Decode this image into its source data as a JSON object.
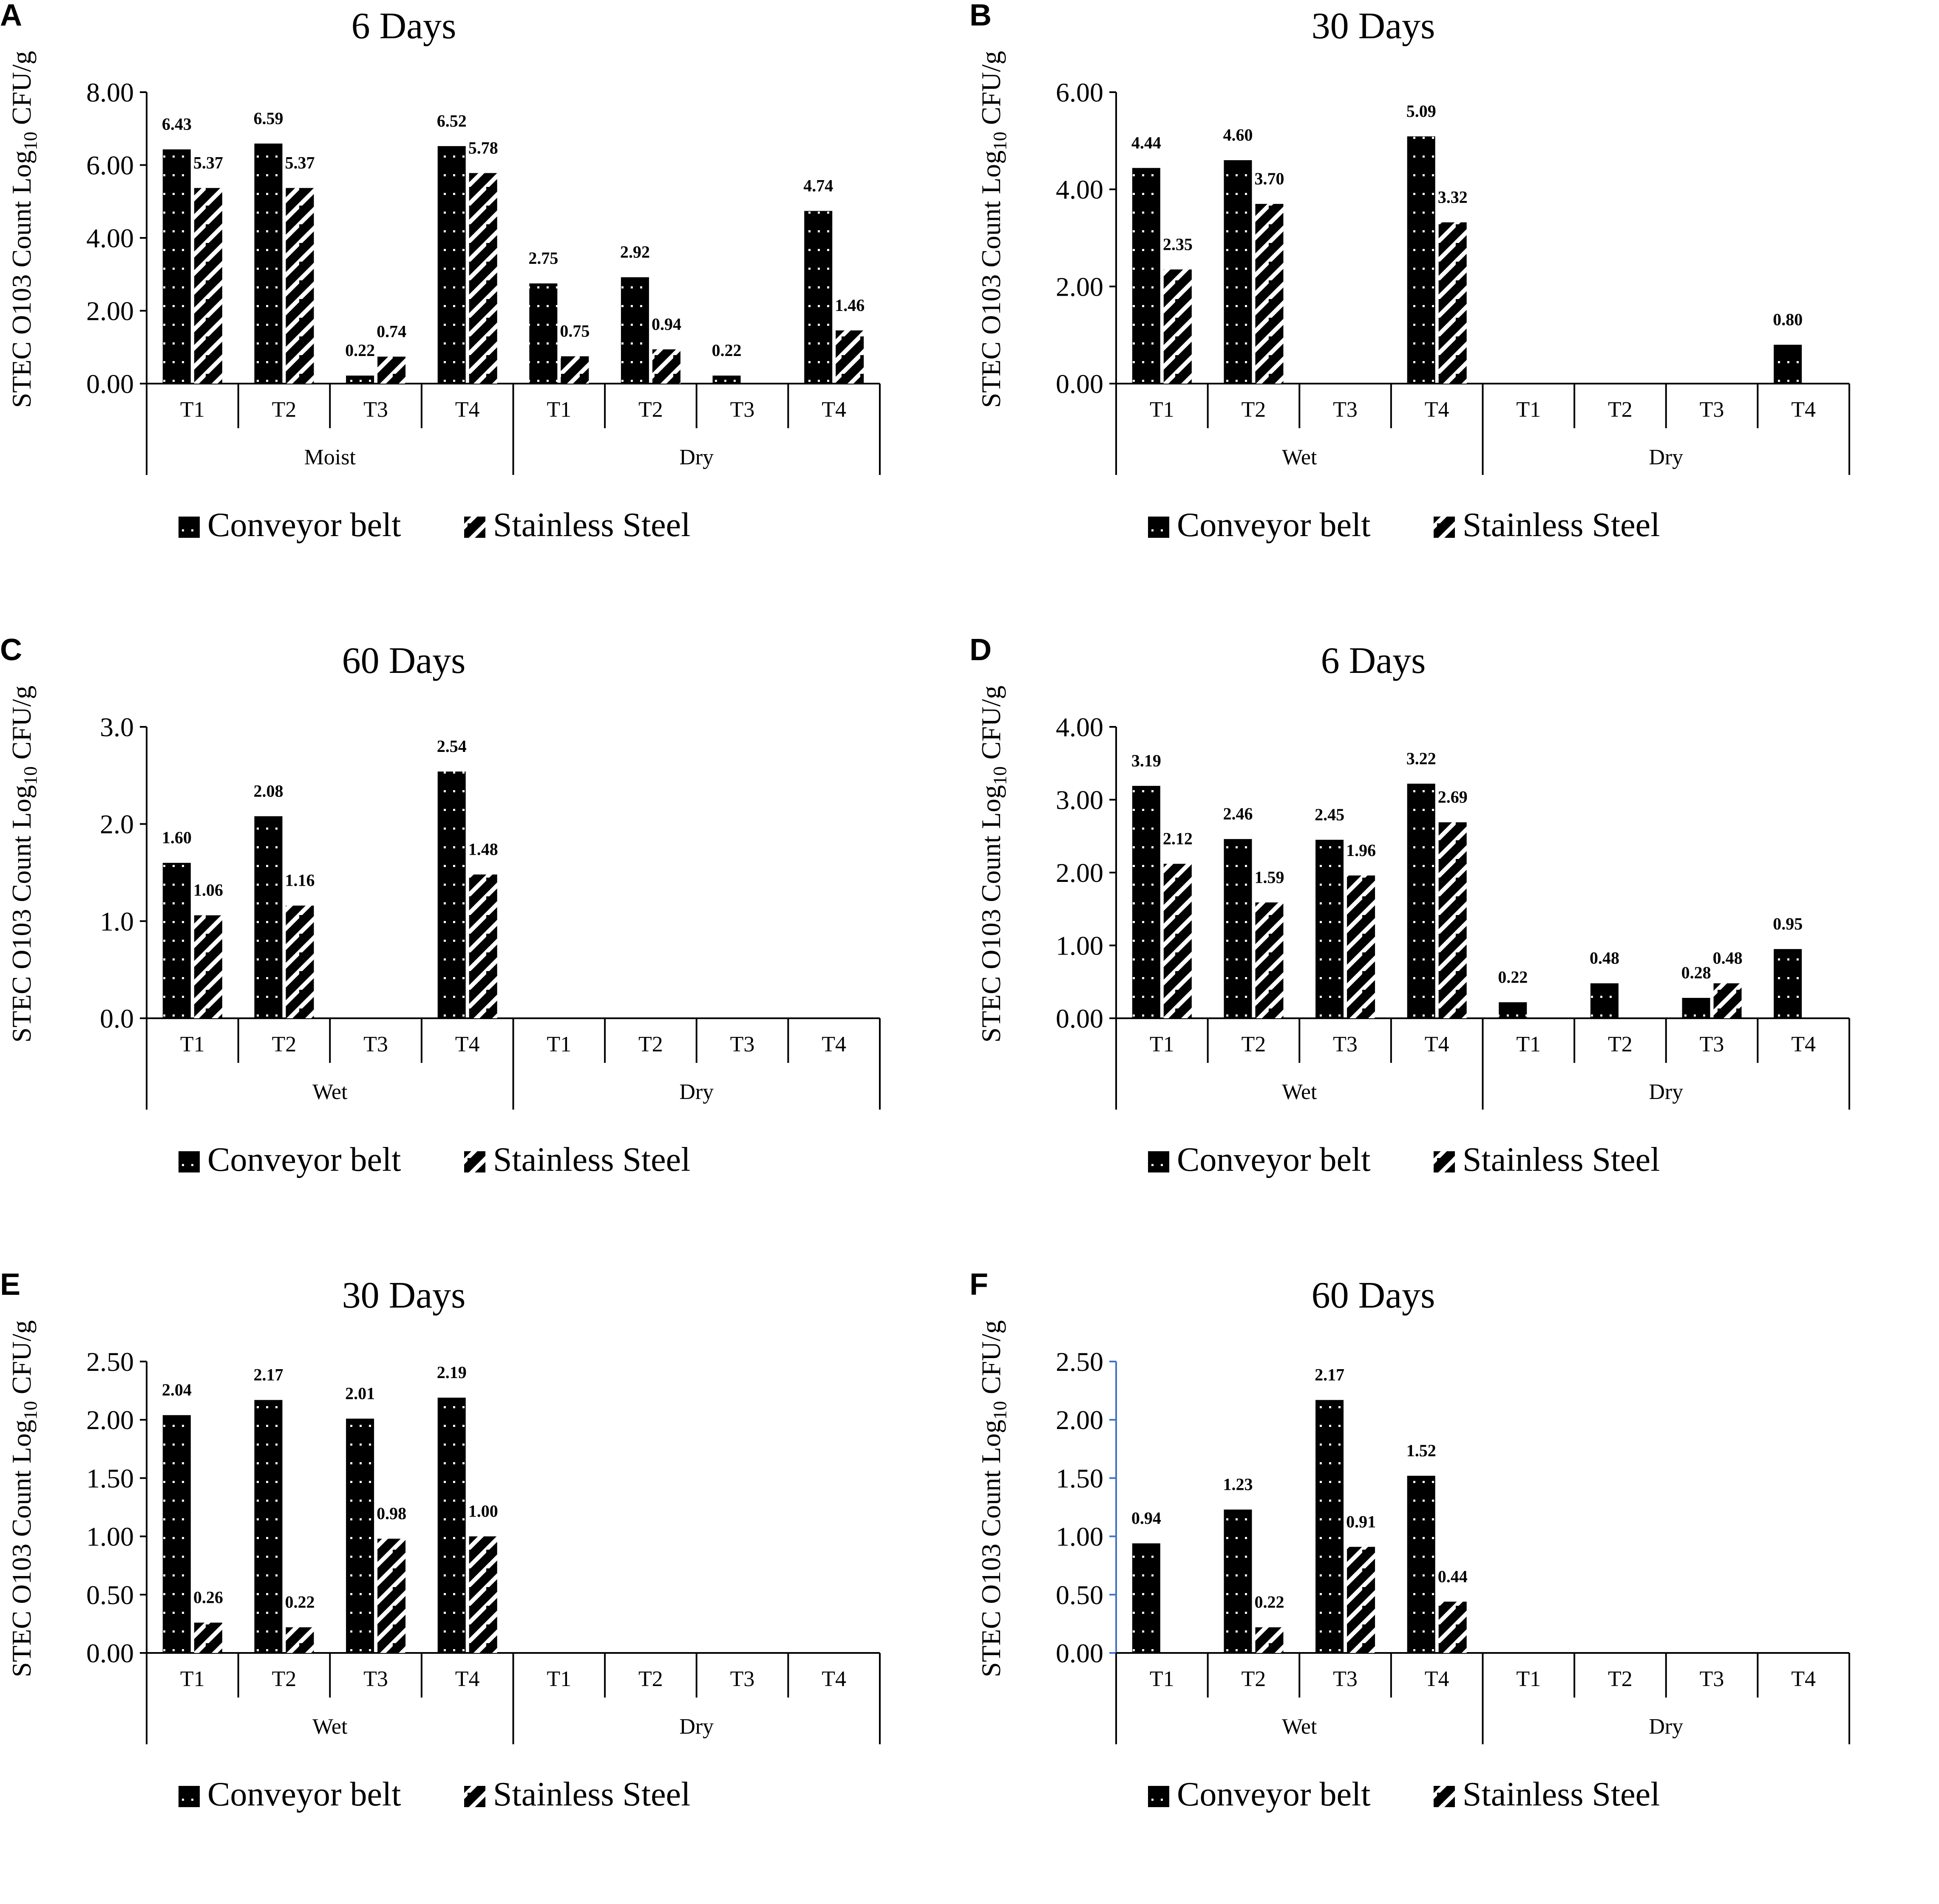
{
  "chart_data": [
    {
      "type": "bar",
      "panel_label": "A",
      "title": "6 Days",
      "ylabel": "STEC O103 Count Log10 CFU/g",
      "ylabel_main": "STEC O103 Count Log",
      "ylabel_sub": "10",
      "ylabel_unit": " CFU/g",
      "ylim": [
        0,
        8
      ],
      "yticks": [
        "0.00",
        "2.00",
        "4.00",
        "6.00",
        "8.00"
      ],
      "yaxis_color": "#000000",
      "categories": [
        "T1",
        "T2",
        "T3",
        "T4",
        "T1",
        "T2",
        "T3",
        "T4"
      ],
      "groups": [
        "Moist",
        "Dry"
      ],
      "series": [
        {
          "name": "Conveyor belt",
          "values": [
            6.43,
            6.59,
            0.22,
            6.52,
            2.75,
            2.92,
            0.22,
            4.74
          ],
          "labels": [
            "6.43",
            "6.59",
            "0.22",
            "6.52",
            "2.75",
            "2.92",
            "0.22",
            "4.74"
          ]
        },
        {
          "name": "Stainless Steel",
          "values": [
            5.37,
            5.37,
            0.74,
            5.78,
            0.75,
            0.94,
            null,
            1.46
          ],
          "labels": [
            "5.37",
            "5.37",
            "0.74",
            "5.78",
            "0.75",
            "0.94",
            "",
            "1.46"
          ]
        }
      ],
      "legend": [
        "Conveyor belt",
        "Stainless Steel"
      ]
    },
    {
      "type": "bar",
      "panel_label": "B",
      "title": "30 Days",
      "ylabel": "STEC O103 Count Log10 CFU/g",
      "ylabel_main": "STEC O103 Count Log",
      "ylabel_sub": "10",
      "ylabel_unit": " CFU/g",
      "ylim": [
        0,
        6
      ],
      "yticks": [
        "0.00",
        "2.00",
        "4.00",
        "6.00"
      ],
      "yaxis_color": "#000000",
      "categories": [
        "T1",
        "T2",
        "T3",
        "T4",
        "T1",
        "T2",
        "T3",
        "T4"
      ],
      "groups": [
        "Wet",
        "Dry"
      ],
      "series": [
        {
          "name": "Conveyor belt",
          "values": [
            4.44,
            4.6,
            null,
            5.09,
            null,
            null,
            null,
            0.8
          ],
          "labels": [
            "4.44",
            "4.60",
            "",
            "5.09",
            "",
            "",
            "",
            "0.80"
          ]
        },
        {
          "name": "Stainless Steel",
          "values": [
            2.35,
            3.7,
            null,
            3.32,
            null,
            null,
            null,
            null
          ],
          "labels": [
            "2.35",
            "3.70",
            "",
            "3.32",
            "",
            "",
            "",
            ""
          ]
        }
      ],
      "legend": [
        "Conveyor belt",
        "Stainless Steel"
      ]
    },
    {
      "type": "bar",
      "panel_label": "C",
      "title": "60 Days",
      "ylabel": "STEC O103 Count Log10 CFU/g",
      "ylabel_main": "STEC O103 Count Log",
      "ylabel_sub": "10",
      "ylabel_unit": " CFU/g",
      "ylim": [
        0,
        3
      ],
      "yticks": [
        "0.0",
        "1.0",
        "2.0",
        "3.0"
      ],
      "yaxis_color": "#000000",
      "categories": [
        "T1",
        "T2",
        "T3",
        "T4",
        "T1",
        "T2",
        "T3",
        "T4"
      ],
      "groups": [
        "Wet",
        "Dry"
      ],
      "series": [
        {
          "name": "Conveyor belt",
          "values": [
            1.6,
            2.08,
            null,
            2.54,
            null,
            null,
            null,
            null
          ],
          "labels": [
            "1.60",
            "2.08",
            "",
            "2.54",
            "",
            "",
            "",
            ""
          ]
        },
        {
          "name": "Stainless Steel",
          "values": [
            1.06,
            1.16,
            null,
            1.48,
            null,
            null,
            null,
            null
          ],
          "labels": [
            "1.06",
            "1.16",
            "",
            "1.48",
            "",
            "",
            "",
            ""
          ]
        }
      ],
      "legend": [
        "Conveyor belt",
        "Stainless Steel"
      ]
    },
    {
      "type": "bar",
      "panel_label": "D",
      "title": "6 Days",
      "ylabel": "STEC O103 Count Log10 CFU/g",
      "ylabel_main": "STEC O103 Count Log",
      "ylabel_sub": "10",
      "ylabel_unit": " CFU/g",
      "ylim": [
        0,
        4
      ],
      "yticks": [
        "0.00",
        "1.00",
        "2.00",
        "3.00",
        "4.00"
      ],
      "yaxis_color": "#000000",
      "categories": [
        "T1",
        "T2",
        "T3",
        "T4",
        "T1",
        "T2",
        "T3",
        "T4"
      ],
      "groups": [
        "Wet",
        "Dry"
      ],
      "series": [
        {
          "name": "Conveyor belt",
          "values": [
            3.19,
            2.46,
            2.45,
            3.22,
            0.22,
            0.48,
            0.28,
            0.95
          ],
          "labels": [
            "3.19",
            "2.46",
            "2.45",
            "3.22",
            "0.22",
            "0.48",
            "0.28",
            "0.95"
          ]
        },
        {
          "name": "Stainless Steel",
          "values": [
            2.12,
            1.59,
            1.96,
            2.69,
            null,
            null,
            0.48,
            null
          ],
          "labels": [
            "2.12",
            "1.59",
            "1.96",
            "2.69",
            "",
            "",
            "0.48",
            ""
          ]
        }
      ],
      "legend": [
        "Conveyor belt",
        "Stainless Steel"
      ]
    },
    {
      "type": "bar",
      "panel_label": "E",
      "title": "30 Days",
      "ylabel": "STEC O103 Count Log10 CFU/g",
      "ylabel_main": "STEC O103 Count Log",
      "ylabel_sub": "10",
      "ylabel_unit": " CFU/g",
      "ylim": [
        0,
        2.5
      ],
      "yticks": [
        "0.00",
        "0.50",
        "1.00",
        "1.50",
        "2.00",
        "2.50"
      ],
      "yaxis_color": "#000000",
      "categories": [
        "T1",
        "T2",
        "T3",
        "T4",
        "T1",
        "T2",
        "T3",
        "T4"
      ],
      "groups": [
        "Wet",
        "Dry"
      ],
      "series": [
        {
          "name": "Conveyor belt",
          "values": [
            2.04,
            2.17,
            2.01,
            2.19,
            null,
            null,
            null,
            null
          ],
          "labels": [
            "2.04",
            "2.17",
            "2.01",
            "2.19",
            "",
            "",
            "",
            ""
          ]
        },
        {
          "name": "Stainless Steel",
          "values": [
            0.26,
            0.22,
            0.98,
            1.0,
            null,
            null,
            null,
            null
          ],
          "labels": [
            "0.26",
            "0.22",
            "0.98",
            "1.00",
            "",
            "",
            "",
            ""
          ]
        }
      ],
      "legend": [
        "Conveyor belt",
        "Stainless Steel"
      ]
    },
    {
      "type": "bar",
      "panel_label": "F",
      "title": "60 Days",
      "ylabel": "STEC O103 Count Log10 CFU/g",
      "ylabel_main": "STEC O103 Count Log",
      "ylabel_sub": "10",
      "ylabel_unit": " CFU/g",
      "ylim": [
        0,
        2.5
      ],
      "yticks": [
        "0.00",
        "0.50",
        "1.00",
        "1.50",
        "2.00",
        "2.50"
      ],
      "yaxis_color": "#4472c4",
      "categories": [
        "T1",
        "T2",
        "T3",
        "T4",
        "T1",
        "T2",
        "T3",
        "T4"
      ],
      "groups": [
        "Wet",
        "Dry"
      ],
      "series": [
        {
          "name": "Conveyor belt",
          "values": [
            0.94,
            1.23,
            2.17,
            1.52,
            null,
            null,
            null,
            null
          ],
          "labels": [
            "0.94",
            "1.23",
            "2.17",
            "1.52",
            "",
            "",
            "",
            ""
          ]
        },
        {
          "name": "Stainless Steel",
          "values": [
            null,
            0.22,
            0.91,
            0.44,
            null,
            null,
            null,
            null
          ],
          "labels": [
            "",
            "0.22",
            "0.91",
            "0.44",
            "",
            "",
            "",
            ""
          ]
        }
      ],
      "legend": [
        "Conveyor belt",
        "Stainless Steel"
      ]
    }
  ]
}
